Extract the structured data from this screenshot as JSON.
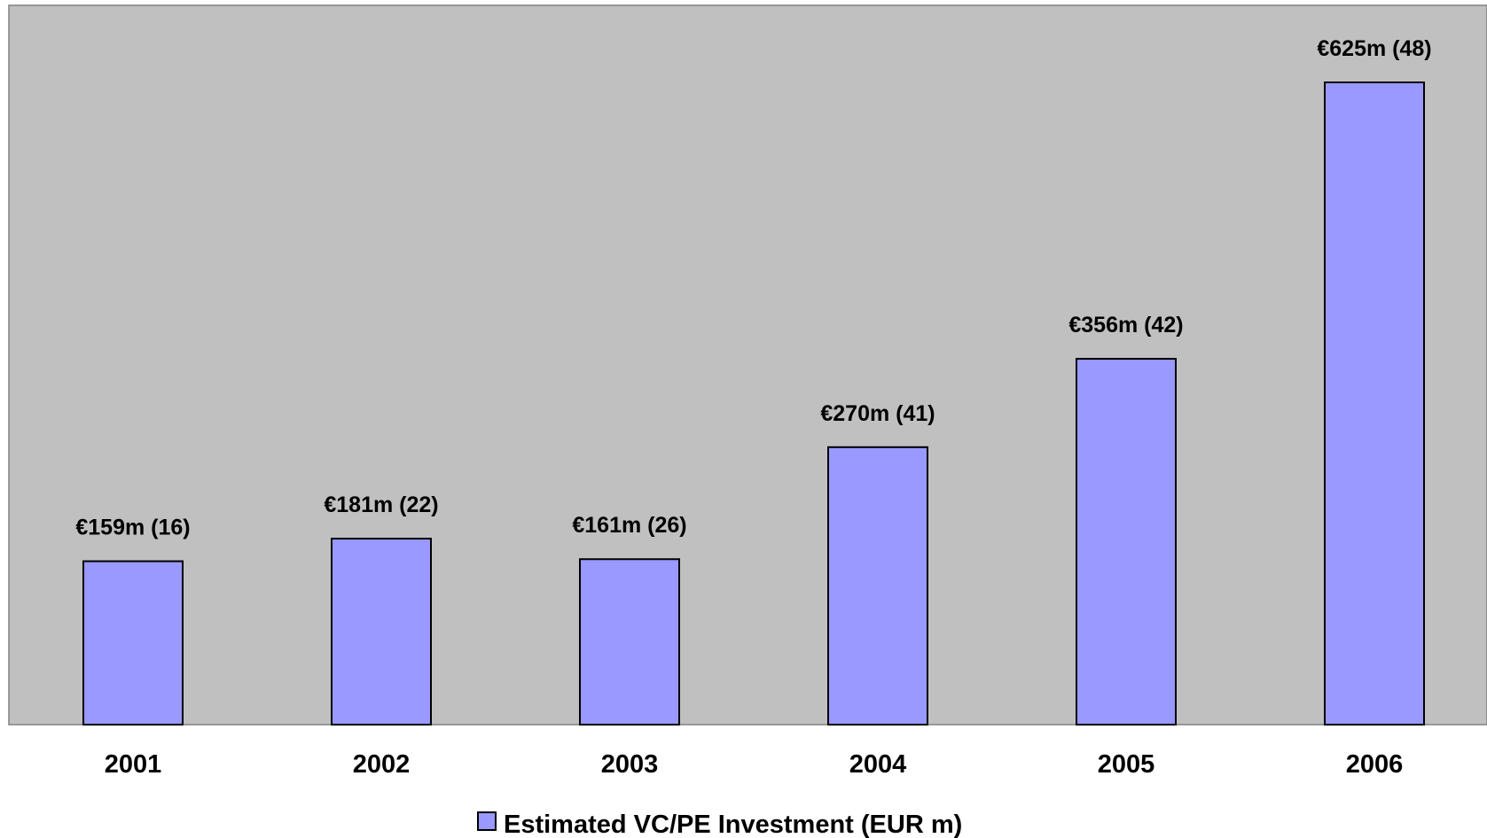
{
  "chart_data": {
    "type": "bar",
    "categories": [
      "2001",
      "2002",
      "2003",
      "2004",
      "2005",
      "2006"
    ],
    "series": [
      {
        "name": "Estimated VC/PE Investment (EUR m)",
        "values": [
          159,
          181,
          161,
          270,
          356,
          625
        ],
        "deal_counts": [
          16,
          22,
          26,
          41,
          42,
          48
        ],
        "data_labels": [
          "€159m (16)",
          "€181m (22)",
          "€161m (26)",
          "€270m (41)",
          "€356m (42)",
          "€625m (48)"
        ]
      }
    ],
    "title": "",
    "xlabel": "",
    "ylabel": "",
    "ylim": [
      0,
      700
    ],
    "grid": false,
    "legend_position": "bottom",
    "colors": {
      "plot_background": "#c0c0c0",
      "bar_fill": "#9999ff",
      "bar_stroke": "#000000",
      "plot_border": "#808080"
    }
  }
}
